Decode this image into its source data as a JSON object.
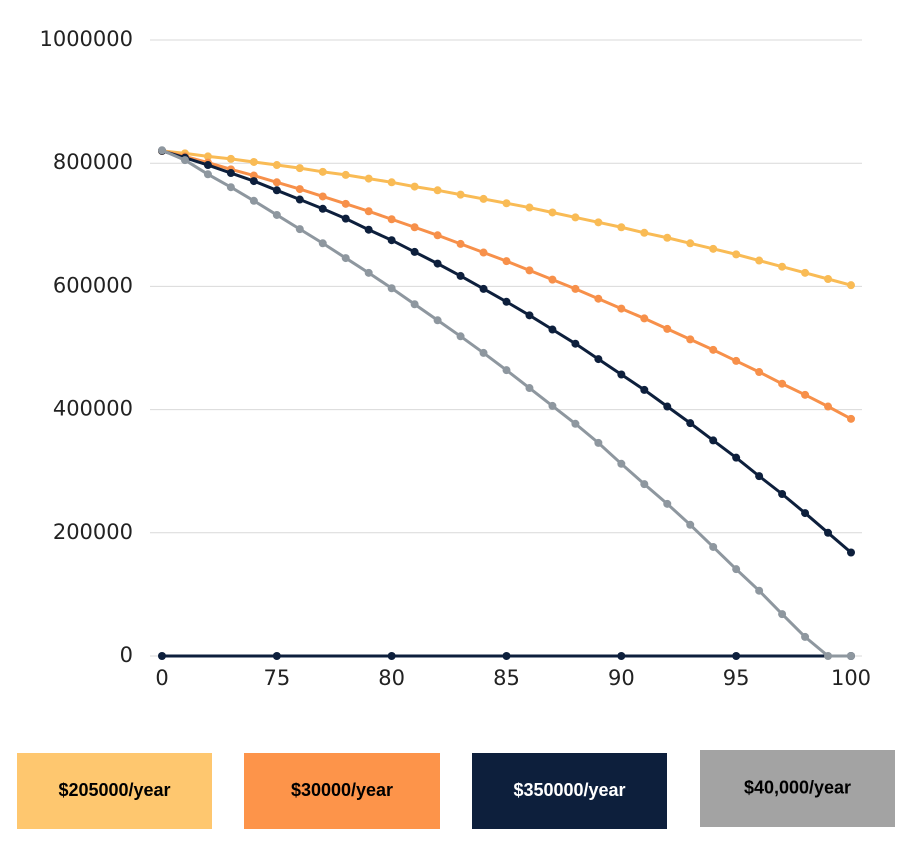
{
  "chart_data": {
    "type": "line",
    "xlim": [
      70,
      100
    ],
    "xticks": [
      {
        "value": 70,
        "label": "0"
      },
      75,
      80,
      85,
      90,
      95,
      100
    ],
    "ylim": [
      0,
      1000000
    ],
    "yticks": [
      0,
      200000,
      400000,
      600000,
      800000,
      1000000
    ],
    "grid": true,
    "x": [
      70,
      71,
      72,
      73,
      74,
      75,
      76,
      77,
      78,
      79,
      80,
      81,
      82,
      83,
      84,
      85,
      86,
      87,
      88,
      89,
      90,
      91,
      92,
      93,
      94,
      95,
      96,
      97,
      98,
      99,
      100
    ],
    "series": [
      {
        "name": "$205000/year",
        "color": "#f9bb55",
        "legend_color": "#fec76f",
        "values": [
          820000,
          816000,
          811000,
          807000,
          802000,
          797000,
          792000,
          786000,
          781000,
          775000,
          769000,
          762000,
          756000,
          749000,
          742000,
          735000,
          728000,
          720000,
          712000,
          704000,
          696000,
          687000,
          679000,
          670000,
          661000,
          652000,
          642000,
          632000,
          622000,
          612000,
          602000
        ]
      },
      {
        "name": "$30000/year",
        "color": "#f7904a",
        "legend_color": "#fd944a",
        "values": [
          820000,
          811000,
          801000,
          790000,
          780000,
          769000,
          758000,
          746000,
          734000,
          722000,
          709000,
          696000,
          683000,
          669000,
          655000,
          641000,
          626000,
          611000,
          596000,
          580000,
          564000,
          548000,
          531000,
          514000,
          497000,
          479000,
          461000,
          442000,
          424000,
          405000,
          385000
        ]
      },
      {
        "name": "$350000/year",
        "color": "#0d1f3c",
        "legend_color": "#0d1f3c",
        "values": [
          820000,
          809000,
          797000,
          784000,
          771000,
          756000,
          741000,
          726000,
          710000,
          692000,
          675000,
          656000,
          637000,
          617000,
          596000,
          575000,
          553000,
          530000,
          507000,
          482000,
          457000,
          432000,
          405000,
          378000,
          350000,
          322000,
          292000,
          263000,
          232000,
          200000,
          168000
        ]
      },
      {
        "name": "$40,000/year",
        "color": "#8e979f",
        "legend_color": "#a3a3a3",
        "values": [
          821000,
          805000,
          782000,
          761000,
          739000,
          716000,
          693000,
          670000,
          646000,
          622000,
          597000,
          571000,
          545000,
          519000,
          492000,
          464000,
          435000,
          406000,
          377000,
          346000,
          312000,
          279000,
          247000,
          213000,
          177000,
          141000,
          106000,
          68000,
          31000,
          0,
          0
        ]
      },
      {
        "color": "#0d1f3c",
        "x": [
          70,
          75,
          80,
          85,
          90,
          95,
          100
        ],
        "values": [
          0,
          0,
          0,
          0,
          0,
          0,
          0
        ]
      }
    ]
  }
}
